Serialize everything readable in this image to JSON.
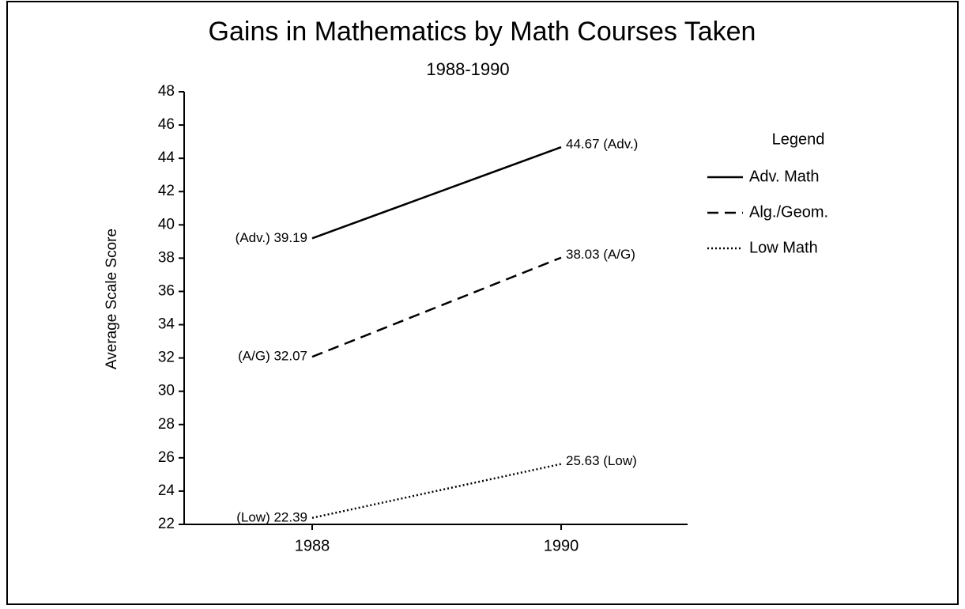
{
  "chart_data": {
    "type": "line",
    "title": "Gains in Mathematics by Math Courses Taken",
    "subtitle": "1988-1990",
    "y_label": "Average Scale Score",
    "legend_title": "Legend",
    "categories": [
      "1988",
      "1990"
    ],
    "series": [
      {
        "name": "Adv. Math",
        "color": "#000000",
        "dash": "solid",
        "values": [
          39.19,
          44.67
        ],
        "value_labels": [
          "(Adv.) 39.19",
          "44.67 (Adv.)"
        ]
      },
      {
        "name": "Alg./Geom.",
        "color": "#000000",
        "dash": "dashed",
        "values": [
          32.07,
          38.03
        ],
        "value_labels": [
          "(A/G) 32.07",
          "38.03 (A/G)"
        ]
      },
      {
        "name": "Low Math",
        "color": "#000000",
        "dash": "dotted",
        "values": [
          22.39,
          25.63
        ],
        "value_labels": [
          "(Low) 22.39",
          "25.63 (Low)"
        ]
      }
    ],
    "ylim": [
      22,
      48
    ],
    "yticks": [
      22,
      24,
      26,
      28,
      30,
      32,
      34,
      36,
      38,
      40,
      42,
      44,
      46,
      48
    ],
    "grid": false,
    "legend": "right"
  }
}
